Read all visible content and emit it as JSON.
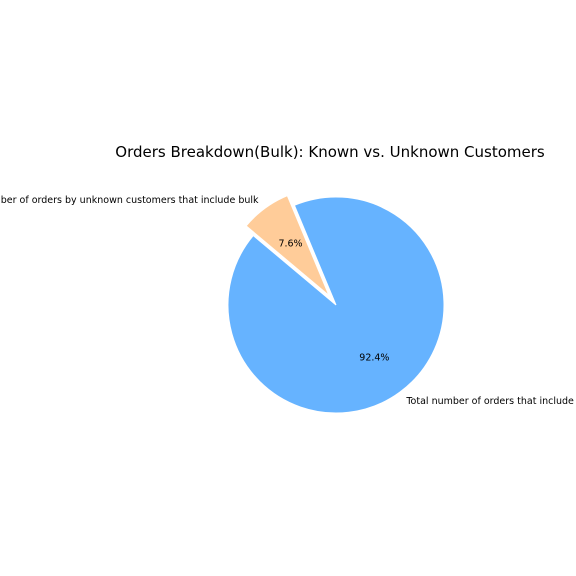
{
  "chart_data": {
    "type": "pie",
    "title": "Orders Breakdown(Bulk): Known vs. Unknown Customers",
    "slices": [
      {
        "label": "Total number of orders that include bulk",
        "value": 92.4,
        "percent_label": "92.4%",
        "color": "#66b3ff",
        "exploded": false
      },
      {
        "label": "Total number of orders by unknown customers that include bulk",
        "value": 7.6,
        "percent_label": "7.6%",
        "color": "#ffcc99",
        "exploded": true
      }
    ]
  }
}
